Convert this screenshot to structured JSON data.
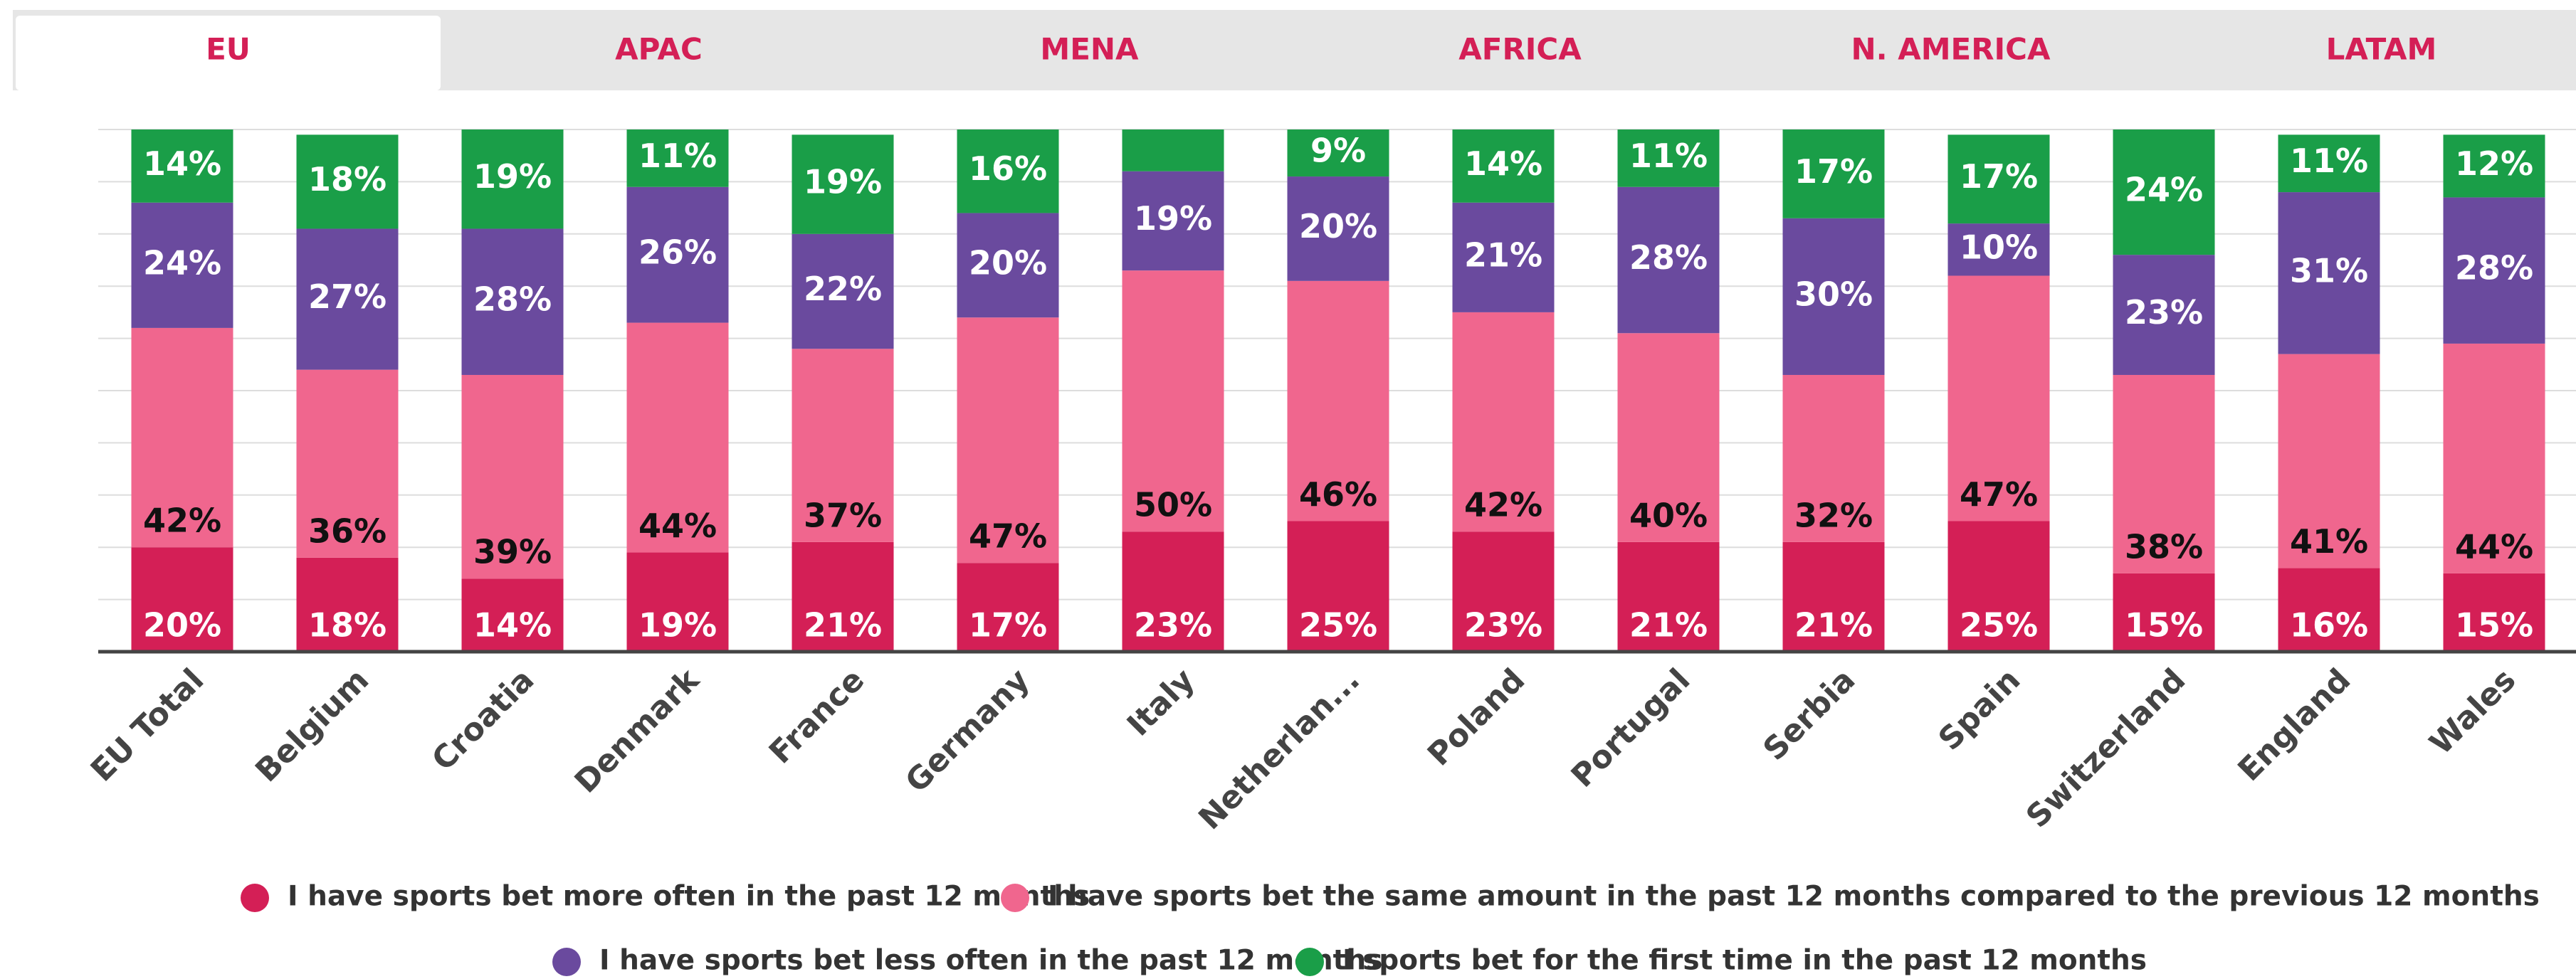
{
  "tabs": [
    "EU",
    "APAC",
    "MENA",
    "AFRICA",
    "N. AMERICA",
    "LATAM"
  ],
  "chart_data": {
    "type": "stacked_bar",
    "categories": [
      "EU Total",
      "Belgium",
      "Croatia",
      "Denmark",
      "France",
      "Germany",
      "Italy",
      "Netherlan...",
      "Poland",
      "Portugal",
      "Serbia",
      "Spain",
      "Switzerland",
      "England",
      "Wales"
    ],
    "ylim": [
      0,
      100
    ],
    "yticks": [
      0,
      10,
      20,
      30,
      40,
      50,
      60,
      70,
      80,
      90,
      100
    ],
    "grid": true,
    "series": [
      {
        "name": "I have sports bet more often in the past 12 months",
        "color": "#d41f56",
        "values": [
          20,
          18,
          14,
          19,
          21,
          17,
          23,
          25,
          23,
          21,
          21,
          25,
          15,
          16,
          15
        ],
        "value_labels": [
          "20%",
          "18%",
          "14%",
          "19%",
          "21%",
          "17%",
          "23%",
          "25%",
          "23%",
          "21%",
          "21%",
          "25%",
          "15%",
          "16%",
          "15%"
        ]
      },
      {
        "name": "I have sports bet the same amount in the past 12 months compared to the previous 12 months",
        "color": "#f0668e",
        "values": [
          42,
          36,
          39,
          44,
          37,
          47,
          50,
          46,
          42,
          40,
          32,
          47,
          38,
          41,
          44
        ],
        "value_labels": [
          "42%",
          "36%",
          "39%",
          "44%",
          "37%",
          "47%",
          "50%",
          "46%",
          "42%",
          "40%",
          "32%",
          "47%",
          "38%",
          "41%",
          "44%"
        ]
      },
      {
        "name": "I have sports bet less often in the past 12 months",
        "color": "#6a4a9e",
        "values": [
          24,
          27,
          28,
          26,
          22,
          20,
          19,
          20,
          21,
          28,
          30,
          10,
          23,
          31,
          28
        ],
        "value_labels": [
          "24%",
          "27%",
          "28%",
          "26%",
          "22%",
          "20%",
          "19%",
          "20%",
          "21%",
          "28%",
          "30%",
          "10%",
          "23%",
          "31%",
          "28%"
        ]
      },
      {
        "name": "I sports bet for the first time in the past 12 months",
        "color": "#1a9e48",
        "values": [
          14,
          18,
          19,
          11,
          19,
          16,
          8,
          9,
          14,
          11,
          17,
          17,
          24,
          11,
          12
        ],
        "value_labels": [
          "14%",
          "18%",
          "19%",
          "11%",
          "19%",
          "16%",
          null,
          "9%",
          "14%",
          "11%",
          "17%",
          "17%",
          "24%",
          "11%",
          "12%"
        ]
      }
    ]
  }
}
